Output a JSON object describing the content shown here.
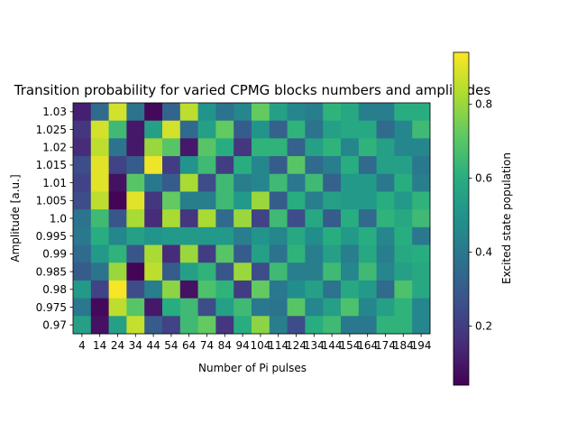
{
  "chart_data": {
    "type": "heatmap",
    "title": "Transition probability for varied CPMG blocks numbers and amplitudes",
    "xlabel": "Number of Pi pulses",
    "ylabel": "Amplitude [a.u.]",
    "colorbar_label": "Excited state population",
    "colormap": "viridis",
    "colorbar_ticks": [
      "0.2",
      "0.4",
      "0.6",
      "0.8"
    ],
    "colorbar_range": [
      0.04,
      0.94
    ],
    "x_categories": [
      "4",
      "14",
      "24",
      "34",
      "44",
      "54",
      "64",
      "74",
      "84",
      "94",
      "104",
      "114",
      "124",
      "134",
      "144",
      "154",
      "164",
      "174",
      "184",
      "194"
    ],
    "y_categories": [
      "1.03",
      "1.025",
      "1.02",
      "1.015",
      "1.01",
      "1.005",
      "1.0",
      "0.995",
      "0.99",
      "0.985",
      "0.98",
      "0.975",
      "0.97"
    ],
    "values": [
      [
        0.12,
        0.35,
        0.88,
        0.38,
        0.06,
        0.33,
        0.85,
        0.5,
        0.38,
        0.45,
        0.72,
        0.55,
        0.45,
        0.42,
        0.62,
        0.58,
        0.42,
        0.42,
        0.6,
        0.6
      ],
      [
        0.18,
        0.88,
        0.65,
        0.1,
        0.55,
        0.88,
        0.35,
        0.55,
        0.72,
        0.3,
        0.5,
        0.32,
        0.62,
        0.38,
        0.55,
        0.58,
        0.58,
        0.35,
        0.45,
        0.65
      ],
      [
        0.15,
        0.85,
        0.38,
        0.1,
        0.8,
        0.7,
        0.1,
        0.7,
        0.6,
        0.18,
        0.62,
        0.62,
        0.32,
        0.55,
        0.62,
        0.45,
        0.62,
        0.55,
        0.45,
        0.45
      ],
      [
        0.25,
        0.9,
        0.22,
        0.3,
        0.92,
        0.2,
        0.5,
        0.65,
        0.2,
        0.6,
        0.45,
        0.3,
        0.7,
        0.35,
        0.42,
        0.6,
        0.35,
        0.55,
        0.55,
        0.4
      ],
      [
        0.22,
        0.9,
        0.08,
        0.7,
        0.4,
        0.3,
        0.82,
        0.25,
        0.65,
        0.42,
        0.45,
        0.65,
        0.4,
        0.65,
        0.32,
        0.52,
        0.52,
        0.4,
        0.6,
        0.42
      ],
      [
        0.25,
        0.85,
        0.05,
        0.9,
        0.18,
        0.72,
        0.42,
        0.42,
        0.65,
        0.52,
        0.8,
        0.3,
        0.6,
        0.42,
        0.55,
        0.52,
        0.52,
        0.6,
        0.52,
        0.62
      ],
      [
        0.38,
        0.65,
        0.28,
        0.82,
        0.15,
        0.82,
        0.18,
        0.82,
        0.35,
        0.8,
        0.22,
        0.65,
        0.25,
        0.58,
        0.3,
        0.6,
        0.35,
        0.62,
        0.58,
        0.65
      ],
      [
        0.4,
        0.6,
        0.45,
        0.55,
        0.5,
        0.52,
        0.52,
        0.52,
        0.52,
        0.42,
        0.5,
        0.45,
        0.58,
        0.48,
        0.6,
        0.52,
        0.6,
        0.45,
        0.6,
        0.4
      ],
      [
        0.35,
        0.52,
        0.62,
        0.28,
        0.82,
        0.15,
        0.8,
        0.2,
        0.7,
        0.3,
        0.55,
        0.38,
        0.62,
        0.42,
        0.55,
        0.42,
        0.58,
        0.42,
        0.58,
        0.6
      ],
      [
        0.3,
        0.38,
        0.8,
        0.05,
        0.85,
        0.3,
        0.55,
        0.62,
        0.28,
        0.8,
        0.25,
        0.65,
        0.42,
        0.42,
        0.65,
        0.45,
        0.65,
        0.45,
        0.55,
        0.58
      ],
      [
        0.52,
        0.22,
        0.93,
        0.25,
        0.42,
        0.78,
        0.08,
        0.68,
        0.62,
        0.2,
        0.72,
        0.4,
        0.48,
        0.55,
        0.38,
        0.58,
        0.52,
        0.35,
        0.68,
        0.58
      ],
      [
        0.4,
        0.06,
        0.85,
        0.7,
        0.1,
        0.6,
        0.65,
        0.25,
        0.55,
        0.65,
        0.4,
        0.38,
        0.7,
        0.45,
        0.55,
        0.68,
        0.45,
        0.55,
        0.62,
        0.45
      ],
      [
        0.55,
        0.08,
        0.55,
        0.86,
        0.3,
        0.22,
        0.65,
        0.72,
        0.18,
        0.6,
        0.78,
        0.42,
        0.25,
        0.6,
        0.65,
        0.4,
        0.4,
        0.62,
        0.62,
        0.45
      ]
    ]
  }
}
